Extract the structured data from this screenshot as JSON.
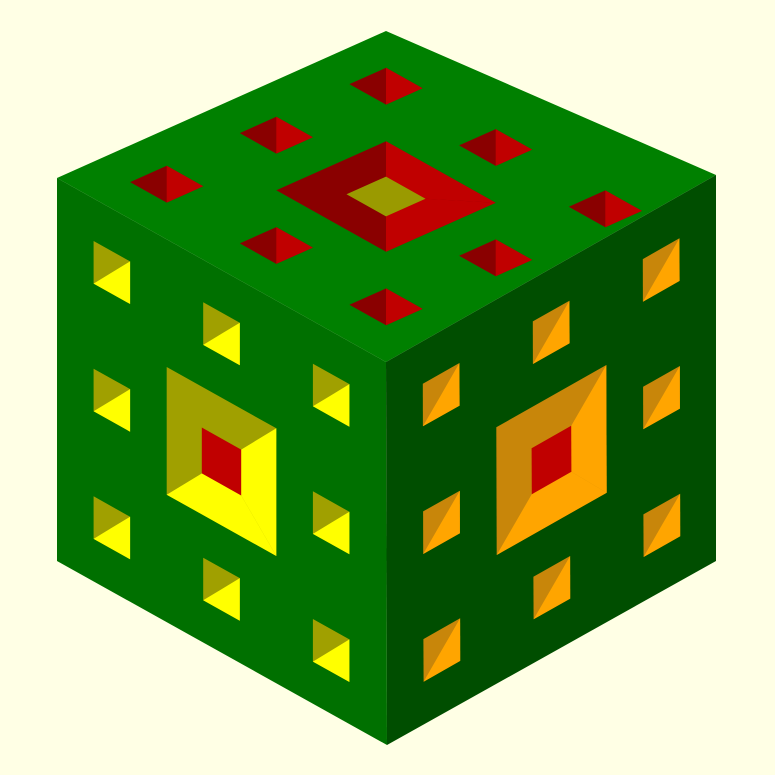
{
  "scene": {
    "object": "menger-sponge-level-2",
    "view": "isometric",
    "colors": {
      "background": "#ffffe5",
      "top_face": "#008000",
      "left_face": "#007000",
      "right_face": "#004e00",
      "hole_red": "#c00000",
      "hole_red_dark": "#8a0000",
      "hole_yellow": "#ffff00",
      "hole_yellow_dark": "#9a9a00",
      "hole_olive": "#a0a000",
      "hole_orange": "#ffa500",
      "hole_orange_dark": "#c8860a"
    }
  }
}
